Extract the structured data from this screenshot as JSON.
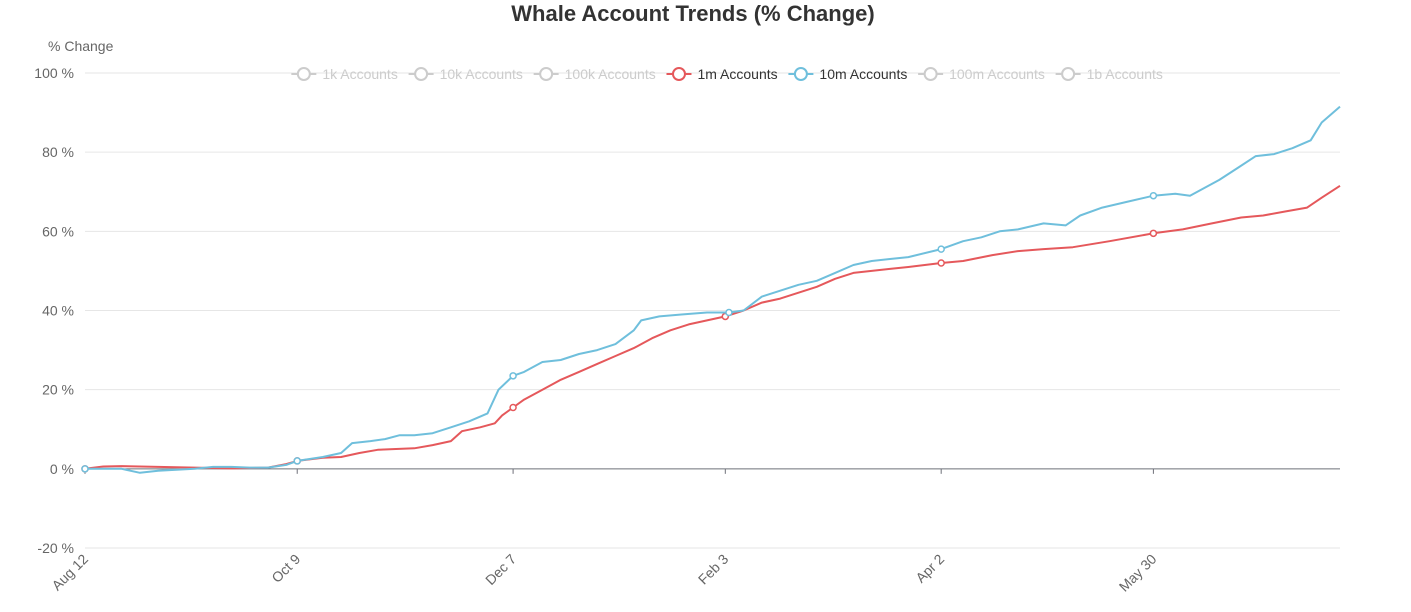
{
  "chart_data": {
    "type": "line",
    "title": "Whale Account Trends (% Change)",
    "ylabel": "% Change",
    "xlabel": "",
    "ylim": [
      -20,
      100
    ],
    "y_ticks": [
      "100 %",
      "80 %",
      "60 %",
      "40 %",
      "20 %",
      "0 %",
      "-20 %"
    ],
    "y_tick_values": [
      100,
      80,
      60,
      40,
      20,
      0,
      -20
    ],
    "x_ticks": [
      "Aug 12",
      "Oct 9",
      "Dec 7",
      "Feb 3",
      "Apr 2",
      "May 30"
    ],
    "x_tick_days": [
      0,
      58,
      117,
      175,
      234,
      292
    ],
    "x_range_days": [
      0,
      343
    ],
    "grid": true,
    "legend_position": "top",
    "legend": [
      {
        "name": "1k Accounts",
        "active": false,
        "color": "#cccccc"
      },
      {
        "name": "10k Accounts",
        "active": false,
        "color": "#cccccc"
      },
      {
        "name": "100k Accounts",
        "active": false,
        "color": "#cccccc"
      },
      {
        "name": "1m Accounts",
        "active": true,
        "color": "#e5585b"
      },
      {
        "name": "10m Accounts",
        "active": true,
        "color": "#6fbfdc"
      },
      {
        "name": "100m Accounts",
        "active": false,
        "color": "#cccccc"
      },
      {
        "name": "1b Accounts",
        "active": false,
        "color": "#cccccc"
      }
    ],
    "series": [
      {
        "name": "1m Accounts",
        "color": "#e5585b",
        "points": [
          [
            0,
            0
          ],
          [
            5,
            0.6
          ],
          [
            10,
            0.7
          ],
          [
            20,
            0.5
          ],
          [
            30,
            0.3
          ],
          [
            40,
            0.1
          ],
          [
            50,
            0.3
          ],
          [
            55,
            1.2
          ],
          [
            58,
            2.0
          ],
          [
            65,
            2.8
          ],
          [
            70,
            3.0
          ],
          [
            75,
            4.0
          ],
          [
            80,
            4.8
          ],
          [
            85,
            5.0
          ],
          [
            90,
            5.2
          ],
          [
            95,
            6.0
          ],
          [
            100,
            7.0
          ],
          [
            103,
            9.5
          ],
          [
            108,
            10.5
          ],
          [
            112,
            11.5
          ],
          [
            114,
            13.5
          ],
          [
            117,
            15.5
          ],
          [
            120,
            17.5
          ],
          [
            125,
            20.0
          ],
          [
            130,
            22.5
          ],
          [
            135,
            24.5
          ],
          [
            140,
            26.5
          ],
          [
            145,
            28.5
          ],
          [
            150,
            30.5
          ],
          [
            155,
            33.0
          ],
          [
            160,
            35.0
          ],
          [
            165,
            36.5
          ],
          [
            170,
            37.5
          ],
          [
            175,
            38.5
          ],
          [
            180,
            40.0
          ],
          [
            185,
            42.0
          ],
          [
            190,
            43.0
          ],
          [
            195,
            44.5
          ],
          [
            200,
            46.0
          ],
          [
            205,
            48.0
          ],
          [
            210,
            49.5
          ],
          [
            215,
            50.0
          ],
          [
            220,
            50.5
          ],
          [
            225,
            51.0
          ],
          [
            234,
            52.0
          ],
          [
            240,
            52.5
          ],
          [
            248,
            54.0
          ],
          [
            255,
            55.0
          ],
          [
            262,
            55.5
          ],
          [
            270,
            56.0
          ],
          [
            280,
            57.5
          ],
          [
            292,
            59.5
          ],
          [
            300,
            60.5
          ],
          [
            308,
            62.0
          ],
          [
            316,
            63.5
          ],
          [
            322,
            64.0
          ],
          [
            328,
            65.0
          ],
          [
            334,
            66.0
          ],
          [
            338,
            68.5
          ],
          [
            343,
            71.5
          ]
        ]
      },
      {
        "name": "10m Accounts",
        "color": "#6fbfdc",
        "points": [
          [
            0,
            0
          ],
          [
            10,
            0
          ],
          [
            15,
            -1
          ],
          [
            20,
            -0.5
          ],
          [
            30,
            0
          ],
          [
            35,
            0.5
          ],
          [
            40,
            0.5
          ],
          [
            45,
            0.3
          ],
          [
            50,
            0.3
          ],
          [
            55,
            1.0
          ],
          [
            58,
            2.0
          ],
          [
            65,
            3.0
          ],
          [
            70,
            4.0
          ],
          [
            73,
            6.5
          ],
          [
            78,
            7.0
          ],
          [
            82,
            7.5
          ],
          [
            86,
            8.5
          ],
          [
            90,
            8.5
          ],
          [
            95,
            9.0
          ],
          [
            100,
            10.5
          ],
          [
            105,
            12.0
          ],
          [
            110,
            14.0
          ],
          [
            113,
            20.0
          ],
          [
            117,
            23.5
          ],
          [
            120,
            24.5
          ],
          [
            125,
            27.0
          ],
          [
            130,
            27.5
          ],
          [
            135,
            29.0
          ],
          [
            140,
            30.0
          ],
          [
            145,
            31.5
          ],
          [
            150,
            35.0
          ],
          [
            152,
            37.5
          ],
          [
            157,
            38.5
          ],
          [
            163,
            39.0
          ],
          [
            170,
            39.5
          ],
          [
            176,
            39.5
          ],
          [
            180,
            40.0
          ],
          [
            185,
            43.5
          ],
          [
            190,
            45.0
          ],
          [
            195,
            46.5
          ],
          [
            200,
            47.5
          ],
          [
            205,
            49.5
          ],
          [
            210,
            51.5
          ],
          [
            215,
            52.5
          ],
          [
            220,
            53.0
          ],
          [
            225,
            53.5
          ],
          [
            234,
            55.5
          ],
          [
            240,
            57.5
          ],
          [
            245,
            58.5
          ],
          [
            250,
            60.0
          ],
          [
            255,
            60.5
          ],
          [
            262,
            62.0
          ],
          [
            268,
            61.5
          ],
          [
            272,
            64.0
          ],
          [
            278,
            66.0
          ],
          [
            285,
            67.5
          ],
          [
            292,
            69.0
          ],
          [
            298,
            69.5
          ],
          [
            302,
            69.0
          ],
          [
            310,
            73.0
          ],
          [
            315,
            76.0
          ],
          [
            320,
            79.0
          ],
          [
            325,
            79.5
          ],
          [
            330,
            81.0
          ],
          [
            335,
            83.0
          ],
          [
            338,
            87.5
          ],
          [
            343,
            91.5
          ]
        ]
      }
    ]
  }
}
